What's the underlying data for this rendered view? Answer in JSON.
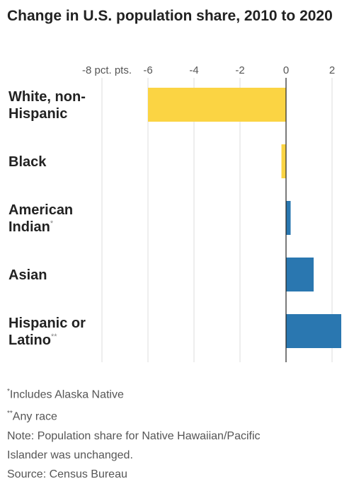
{
  "title": "Change in U.S. population share, 2010 to 2020",
  "chart_data": {
    "type": "bar",
    "orientation": "horizontal",
    "title": "Change in U.S. population share, 2010 to 2020",
    "xlim": [
      -8,
      2.4
    ],
    "ticks": [
      {
        "value": -8,
        "label": "-8 pct. pts."
      },
      {
        "value": -6,
        "label": "-6"
      },
      {
        "value": -4,
        "label": "-4"
      },
      {
        "value": -2,
        "label": "-2"
      },
      {
        "value": 0,
        "label": "0"
      },
      {
        "value": 2,
        "label": "2"
      }
    ],
    "categories": [
      {
        "lines": [
          "White, non-",
          "Hispanic"
        ],
        "mark": ""
      },
      {
        "lines": [
          "Black"
        ],
        "mark": ""
      },
      {
        "lines": [
          "American",
          "Indian"
        ],
        "mark": "*"
      },
      {
        "lines": [
          "Asian"
        ],
        "mark": ""
      },
      {
        "lines": [
          "Hispanic or",
          "Latino"
        ],
        "mark": "**"
      }
    ],
    "values": [
      -6.0,
      -0.2,
      0.2,
      1.2,
      2.4
    ],
    "colors": {
      "negative": "#fbd443",
      "positive": "#2a77b0"
    },
    "grid": true
  },
  "notes": {
    "note1_mark": "*",
    "note1": "Includes Alaska Native",
    "note2_mark": "**",
    "note2": "Any race",
    "note3": "Note: Population share for Native Hawaiian/Pacific",
    "note4": "Islander was unchanged.",
    "source": "Source: Census Bureau"
  }
}
